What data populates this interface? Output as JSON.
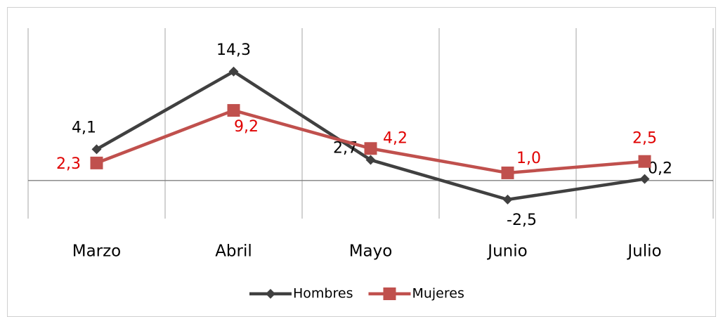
{
  "chart_data": {
    "type": "line",
    "categories": [
      "Marzo",
      "Abril",
      "Mayo",
      "Junio",
      "Julio"
    ],
    "ylim": [
      -5,
      20
    ],
    "series": [
      {
        "name": "Hombres",
        "color": "#404040",
        "label_color": "#000000",
        "marker": "diamond",
        "values": [
          4.1,
          14.3,
          2.7,
          -2.5,
          0.2
        ],
        "value_labels": [
          "4,1",
          "14,3",
          "2,7",
          "-2,5",
          "0,2"
        ]
      },
      {
        "name": "Mujeres",
        "color": "#c0504d",
        "label_color": "#e00000",
        "marker": "square",
        "values": [
          2.3,
          9.2,
          4.2,
          1.0,
          2.5
        ],
        "value_labels": [
          "2,3",
          "9,2",
          "4,2",
          "1,0",
          "2,5"
        ]
      }
    ],
    "legend": "bottom"
  }
}
